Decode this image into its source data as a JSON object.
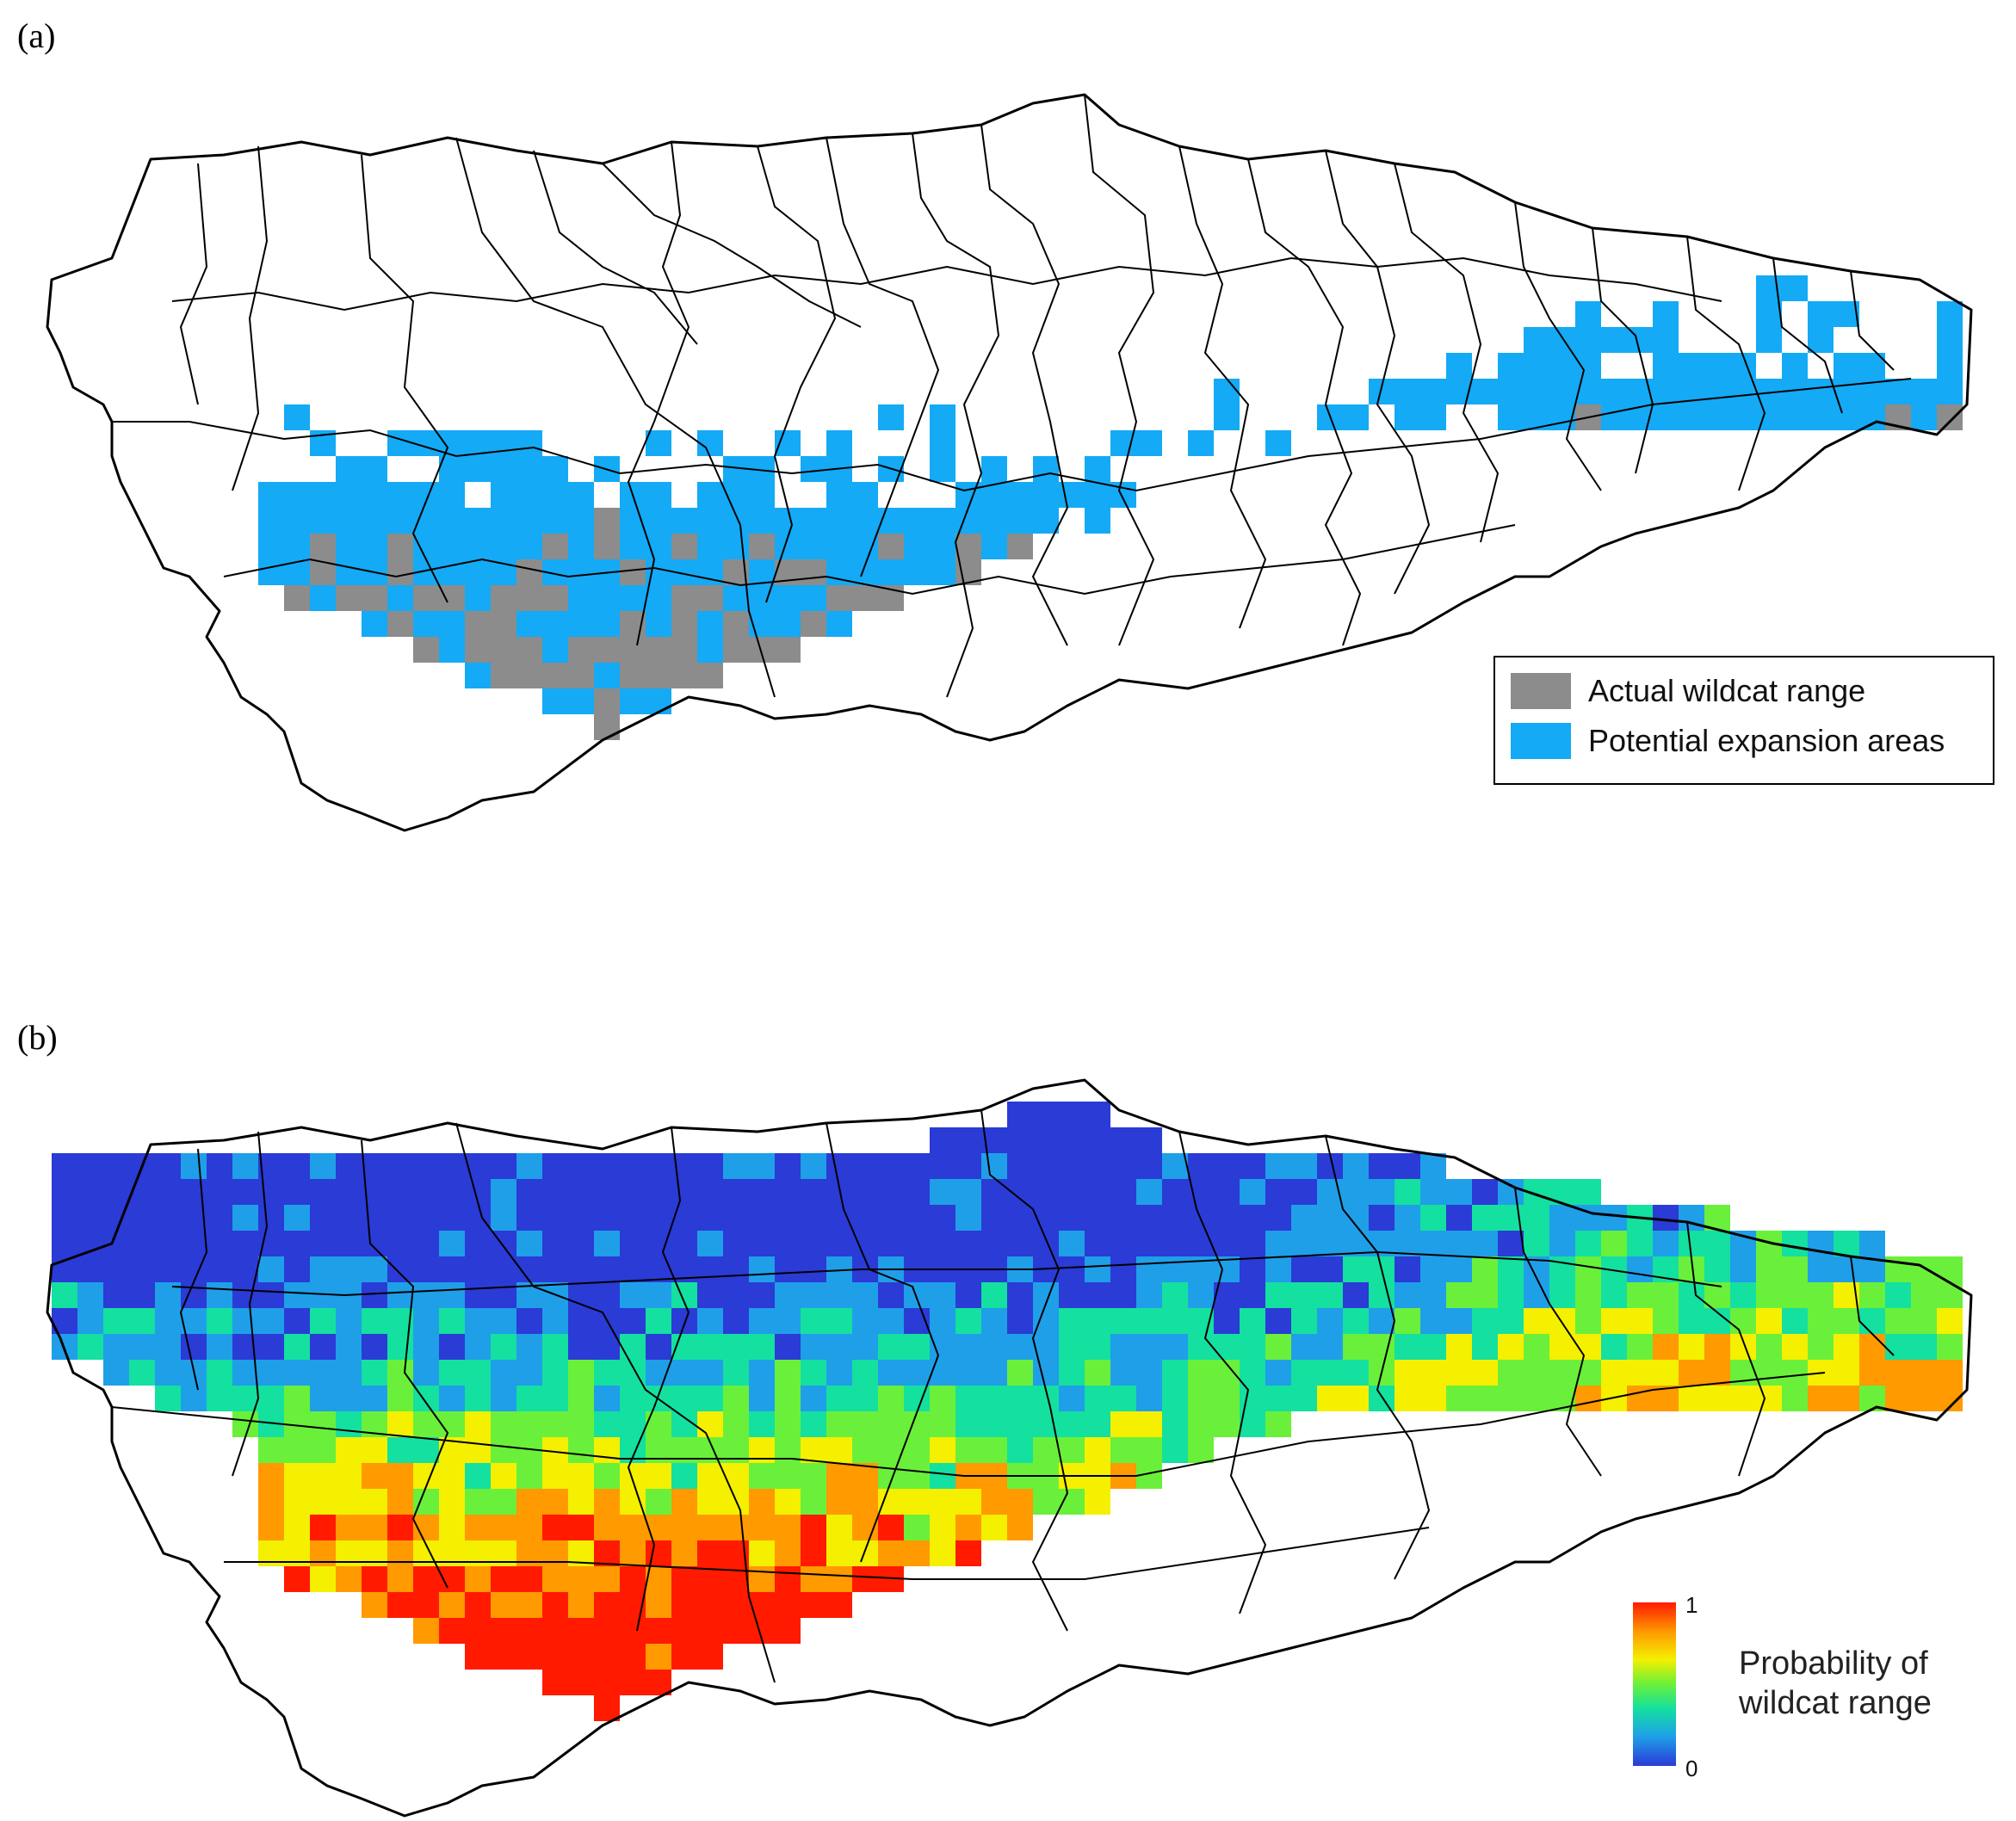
{
  "panel_a": {
    "label": "(a)",
    "legend": {
      "items": [
        {
          "label": "Actual wildcat range",
          "color": "#8c8c8c"
        },
        {
          "label": "Potential expansion areas",
          "color": "#14aaf5"
        }
      ]
    }
  },
  "panel_b": {
    "label": "(b)",
    "colorbar": {
      "title_line1": "Probability of",
      "title_line2": "wildcat range",
      "max_label": "1",
      "min_label": "0",
      "colors": [
        "#2a3bd6",
        "#1f9fe8",
        "#14e0a0",
        "#6af03a",
        "#f4f000",
        "#ff9a00",
        "#ff1a00"
      ]
    }
  },
  "colors": {
    "actual": "#8c8c8c",
    "potential": "#14aaf5",
    "border": "#000000"
  }
}
